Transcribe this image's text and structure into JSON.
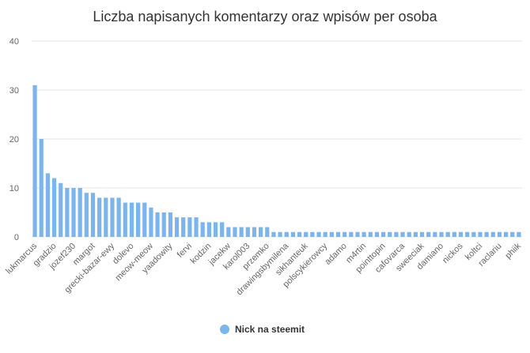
{
  "chart_data": {
    "type": "bar",
    "title": "Liczba napisanych komentarzy oraz wpisów per osoba",
    "categories": [
      "lukmarcus",
      null,
      null,
      "gradzio",
      null,
      null,
      "jozef230",
      null,
      null,
      "margot",
      null,
      null,
      "grecki-bazar-ewy",
      null,
      null,
      "dolevo",
      null,
      null,
      "meow-meow",
      null,
      null,
      "yaadowity",
      null,
      null,
      "fervi",
      null,
      null,
      "kodzin",
      null,
      null,
      "jacekw",
      null,
      null,
      "karol003",
      null,
      null,
      "przemko",
      null,
      null,
      "drawingsbymilena",
      null,
      null,
      "sikhanteuk",
      null,
      null,
      "polscykierowcy",
      null,
      null,
      "adamo",
      null,
      null,
      "m4rtin",
      null,
      null,
      "pointtopin",
      null,
      null,
      "cafovarca",
      null,
      null,
      "sweeciak",
      null,
      null,
      "damiano",
      null,
      null,
      "nickos",
      null,
      null,
      "koltci",
      null,
      null,
      "raclariu",
      null,
      null,
      "phiik"
    ],
    "series": [
      {
        "name": "Nick na steemit",
        "color": "#7cb5ec",
        "values": [
          31,
          20,
          13,
          12,
          11,
          10,
          10,
          10,
          9,
          9,
          8,
          8,
          8,
          8,
          7,
          7,
          7,
          7,
          6,
          5,
          5,
          5,
          4,
          4,
          4,
          4,
          3,
          3,
          3,
          3,
          2,
          2,
          2,
          2,
          2,
          2,
          2,
          1,
          1,
          1,
          1,
          1,
          1,
          1,
          1,
          1,
          1,
          1,
          1,
          1,
          1,
          1,
          1,
          1,
          1,
          1,
          1,
          1,
          1,
          1,
          1,
          1,
          1,
          1,
          1,
          1,
          1,
          1,
          1,
          1,
          1,
          1,
          1,
          1,
          1,
          1
        ]
      }
    ],
    "ylim": [
      0,
      40
    ],
    "yticks": [
      0,
      10,
      20,
      30,
      40
    ],
    "grid": true,
    "legend": "bottom"
  }
}
